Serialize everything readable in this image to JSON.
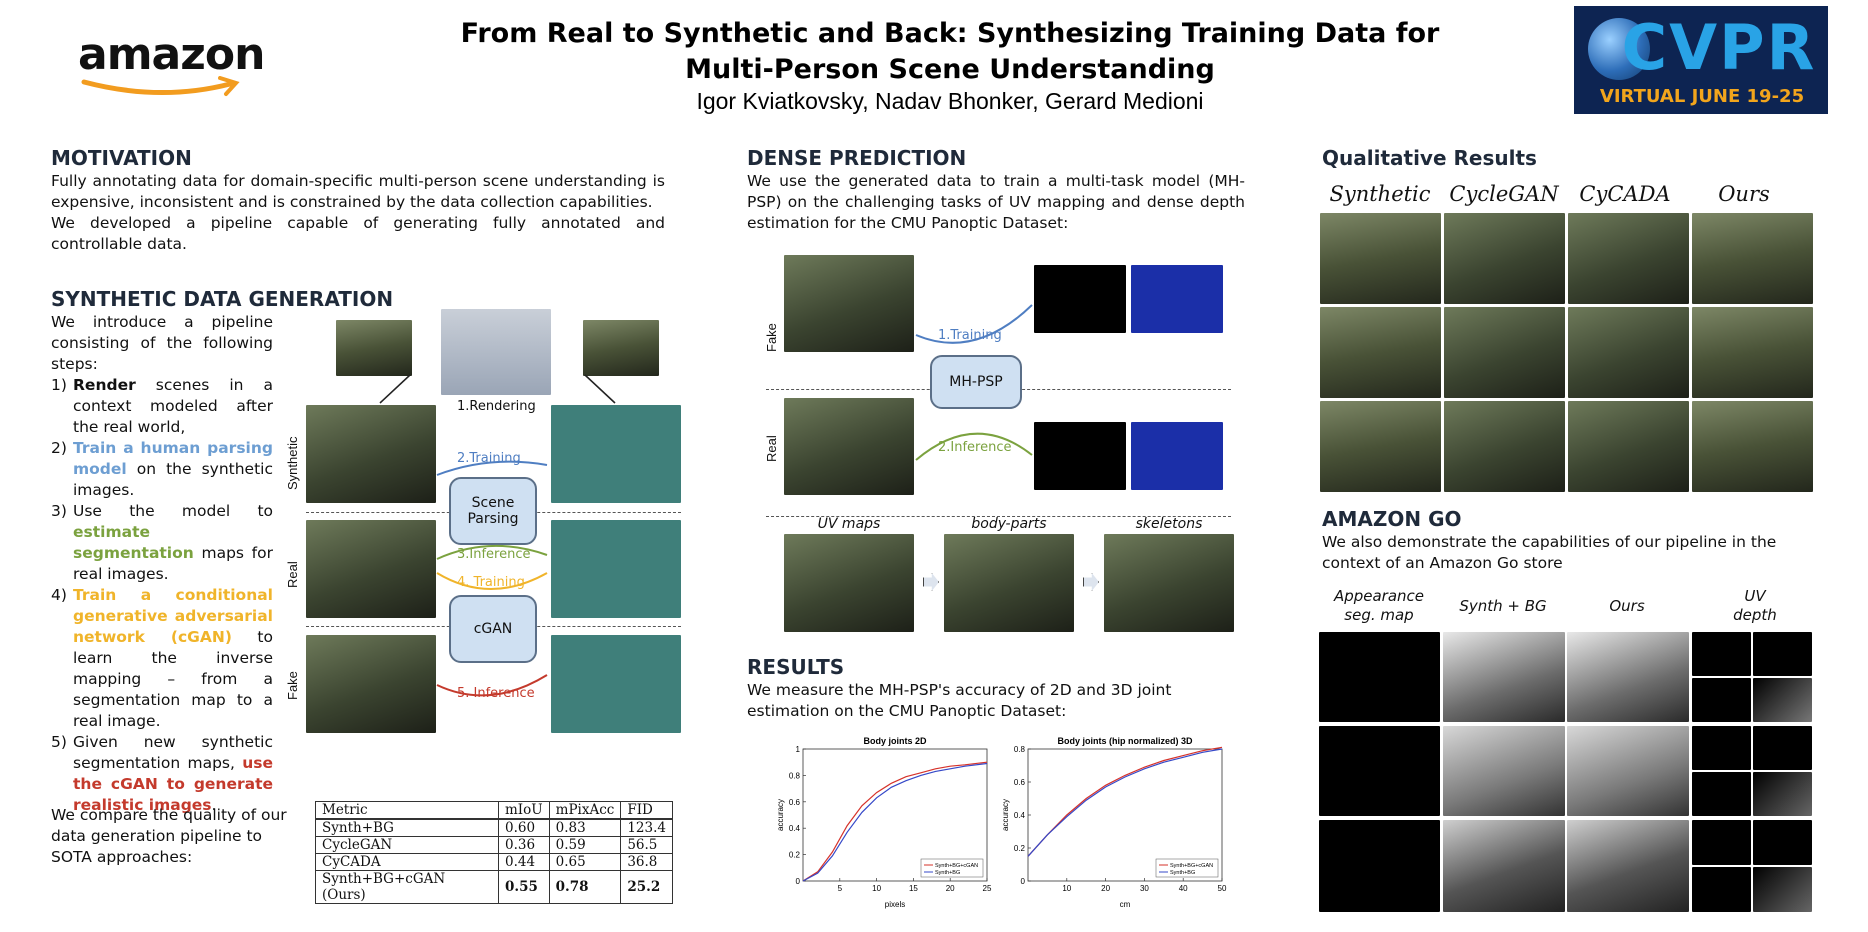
{
  "header": {
    "logo_text": "amazon",
    "title_line1": "From Real to Synthetic and Back: Synthesizing Training Data for",
    "title_line2": "Multi-Person Scene Understanding",
    "authors": "Igor Kviatkovsky, Nadav Bhonker, Gerard Medioni",
    "badge_main": "CVPR",
    "badge_sub": "VIRTUAL JUNE 19-25"
  },
  "motivation": {
    "heading": "MOTIVATION",
    "p1": "Fully annotating data for domain-specific multi-person scene understanding is expensive, inconsistent and is constrained by the data collection capabilities.",
    "p2": "We developed a pipeline capable of generating fully annotated and controllable data."
  },
  "synth": {
    "heading": "SYNTHETIC DATA GENERATION",
    "intro": "We introduce a pipeline consisting of the following steps:",
    "steps": [
      {
        "num": "1)",
        "pre": "",
        "hl": "Render",
        "post": " scenes in a context modeled after the real world,"
      },
      {
        "num": "2)",
        "pre": "",
        "hl": "Train a human parsing model",
        "post": " on the synthetic images."
      },
      {
        "num": "3)",
        "pre": "Use the model to ",
        "hl": "estimate segmentation",
        "post": " maps for real images."
      },
      {
        "num": "4)",
        "pre": "",
        "hl": "Train a conditional generative adversarial network (cGAN)",
        "post": " to learn the inverse mapping – from a segmentation map to a real image."
      },
      {
        "num": "5)",
        "pre": "Given new synthetic segmentation maps, ",
        "hl": "use the cGAN to generate realistic images",
        "post": "."
      }
    ],
    "diagram": {
      "rendering": "1.Rendering",
      "training": "2.Training",
      "scene_parsing": "Scene Parsing",
      "inference": "3.Inference",
      "training4": "4. Training",
      "cgan": "cGAN",
      "inference5": "5. Inference",
      "row_synthetic": "Synthetic",
      "row_real": "Real",
      "row_fake": "Fake"
    },
    "compare_text": "We compare the quality of our data generation pipeline to SOTA approaches:",
    "table": {
      "headers": [
        "Metric",
        "mIoU",
        "mPixAcc",
        "FID"
      ],
      "rows": [
        [
          "Synth+BG",
          "0.60",
          "0.83",
          "123.4"
        ],
        [
          "CycleGAN",
          "0.36",
          "0.59",
          "56.5"
        ],
        [
          "CyCADA",
          "0.44",
          "0.65",
          "36.8"
        ],
        [
          "Synth+BG+cGAN (Ours)",
          "0.55",
          "0.78",
          "25.2"
        ]
      ]
    }
  },
  "dense": {
    "heading": "DENSE PREDICTION",
    "text": "We use the generated data to train a multi-task model (MH-PSP) on the challenging tasks of UV mapping and dense depth estimation for the CMU Panoptic Dataset:",
    "training": "1.Training",
    "model": "MH-PSP",
    "inference": "2.Inference",
    "row_fake": "Fake",
    "row_real": "Real",
    "captions": [
      "UV maps",
      "body-parts",
      "skeletons"
    ]
  },
  "results": {
    "heading": "RESULTS",
    "text": "We measure the MH-PSP's accuracy of 2D and 3D joint estimation on the CMU Panoptic Dataset:"
  },
  "chart_data": [
    {
      "type": "line",
      "title": "Body joints 2D",
      "xlabel": "pixels",
      "ylabel": "accuracy",
      "xlim": [
        0,
        25
      ],
      "ylim": [
        0,
        1
      ],
      "xticks": [
        5,
        10,
        15,
        20,
        25
      ],
      "yticks": [
        0,
        0.2,
        0.4,
        0.6,
        0.8,
        1
      ],
      "legend_position": "bottom-right",
      "series": [
        {
          "name": "Synth+BG+cGAN",
          "color": "#d6322a",
          "x": [
            0,
            2,
            4,
            6,
            8,
            10,
            12,
            14,
            16,
            18,
            20,
            22,
            25
          ],
          "y": [
            0.0,
            0.07,
            0.22,
            0.42,
            0.57,
            0.67,
            0.74,
            0.79,
            0.82,
            0.85,
            0.87,
            0.88,
            0.9
          ]
        },
        {
          "name": "Synth+BG",
          "color": "#3548c8",
          "x": [
            0,
            2,
            4,
            6,
            8,
            10,
            12,
            14,
            16,
            18,
            20,
            22,
            25
          ],
          "y": [
            0.0,
            0.06,
            0.19,
            0.37,
            0.52,
            0.63,
            0.71,
            0.76,
            0.8,
            0.83,
            0.85,
            0.87,
            0.89
          ]
        }
      ]
    },
    {
      "type": "line",
      "title": "Body joints (hip normalized) 3D",
      "xlabel": "cm",
      "ylabel": "accuracy",
      "xlim": [
        0,
        50
      ],
      "ylim": [
        0,
        0.8
      ],
      "xticks": [
        10,
        20,
        30,
        40,
        50
      ],
      "yticks": [
        0,
        0.2,
        0.4,
        0.6,
        0.8
      ],
      "legend_position": "bottom-right",
      "series": [
        {
          "name": "Synth+BG+cGAN",
          "color": "#d6322a",
          "x": [
            0,
            5,
            10,
            15,
            20,
            25,
            30,
            35,
            40,
            45,
            50
          ],
          "y": [
            0.15,
            0.28,
            0.4,
            0.5,
            0.58,
            0.64,
            0.69,
            0.73,
            0.76,
            0.79,
            0.81
          ]
        },
        {
          "name": "Synth+BG",
          "color": "#3548c8",
          "x": [
            0,
            5,
            10,
            15,
            20,
            25,
            30,
            35,
            40,
            45,
            50
          ],
          "y": [
            0.15,
            0.28,
            0.39,
            0.49,
            0.57,
            0.63,
            0.68,
            0.72,
            0.75,
            0.78,
            0.8
          ]
        }
      ]
    }
  ],
  "qualitative": {
    "heading": "Qualitative Results",
    "columns": [
      "Synthetic",
      "CycleGAN",
      "CyCADA",
      "Ours"
    ]
  },
  "amazon_go": {
    "heading": "AMAZON GO",
    "text": "We also demonstrate the capabilities of our pipeline in the context of an Amazon Go store",
    "columns": [
      "Appearance seg. map",
      "Synth + BG",
      "Ours",
      "UV depth"
    ]
  }
}
